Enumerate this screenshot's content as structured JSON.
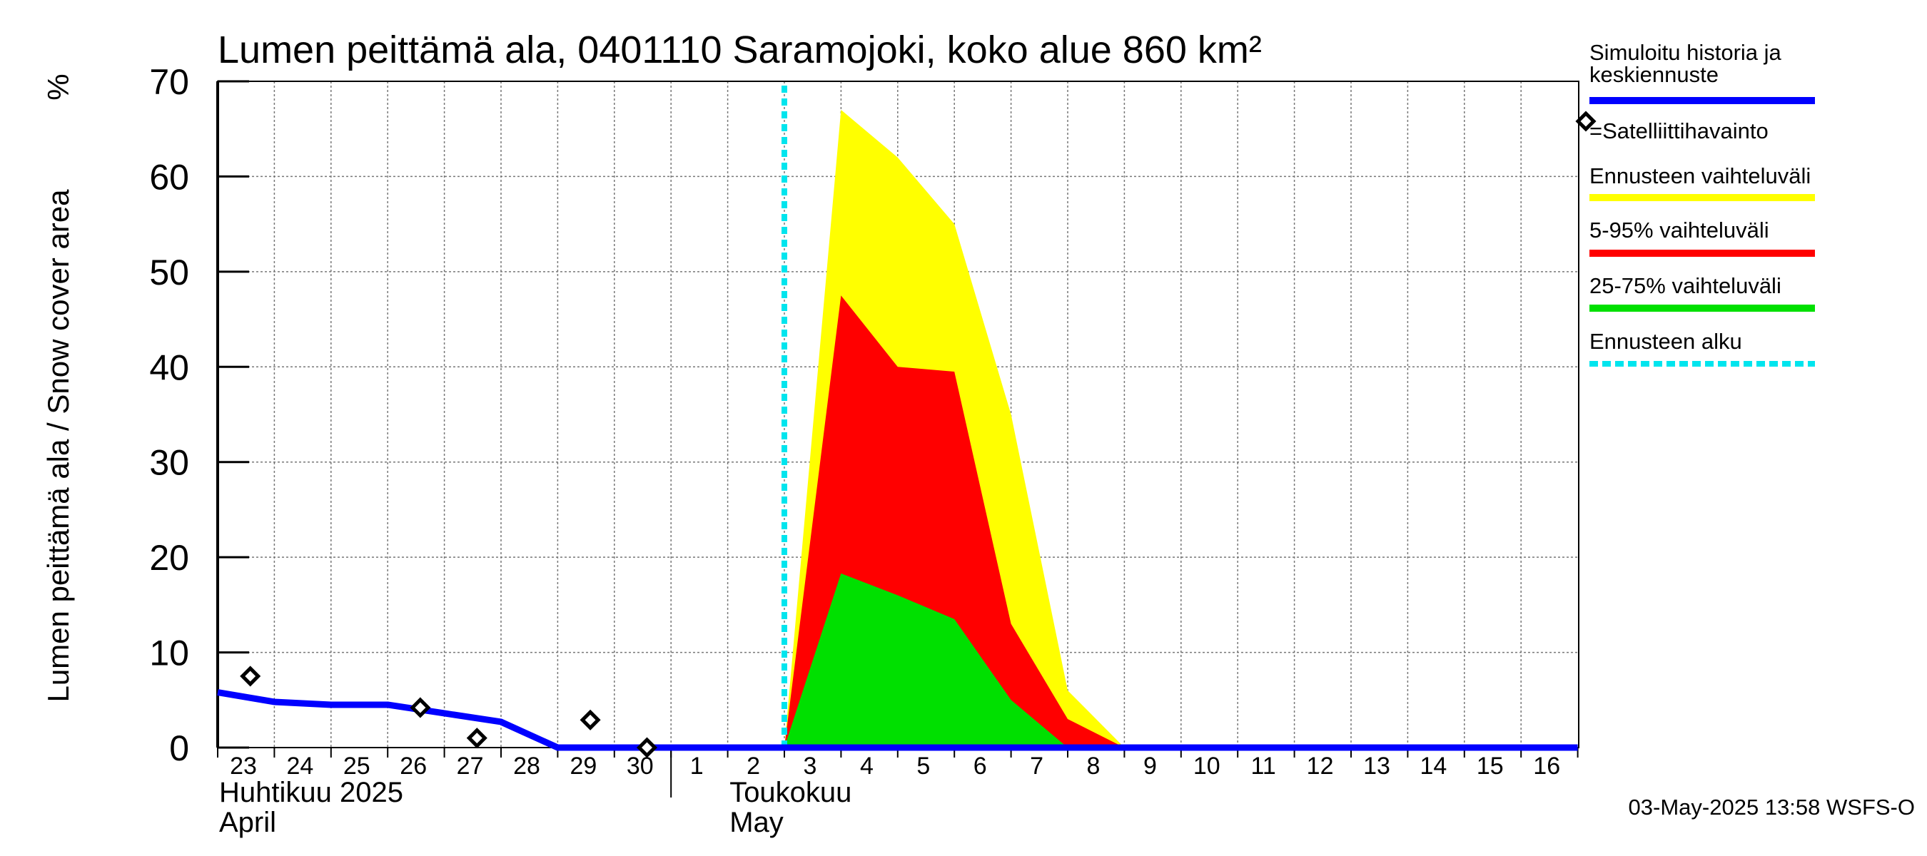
{
  "chart_data": {
    "type": "area",
    "title": "Lumen peittämä ala, 0401110 Saramojoki, koko alue 860 km²",
    "ylabel": "Lumen peittämä ala / Snow cover area",
    "yunit": "%",
    "ylim": [
      0,
      70
    ],
    "yticks": [
      0,
      10,
      20,
      30,
      40,
      50,
      60,
      70
    ],
    "xlim": [
      "2025-04-23",
      "2025-05-17"
    ],
    "x_tick_labels": [
      "23",
      "24",
      "25",
      "26",
      "27",
      "28",
      "29",
      "30",
      "1",
      "2",
      "3",
      "4",
      "5",
      "6",
      "7",
      "8",
      "9",
      "10",
      "11",
      "12",
      "13",
      "14",
      "15",
      "16"
    ],
    "month_labels": [
      {
        "fi": "Huhtikuu  2025",
        "en": "April"
      },
      {
        "fi": "Toukokuu",
        "en": "May"
      }
    ],
    "grid": true,
    "legend_placement": "right",
    "forecast_start": "2025-05-03",
    "series": [
      {
        "name": "Ennusteen vaihteluväli",
        "kind": "band",
        "color": "#ffff00",
        "x": [
          "2025-05-03",
          "2025-05-04",
          "2025-05-05",
          "2025-05-06",
          "2025-05-07",
          "2025-05-08",
          "2025-05-09"
        ],
        "upper": [
          0,
          67,
          62,
          55,
          35,
          6,
          0
        ],
        "lower": [
          0,
          0,
          0,
          0,
          0,
          0,
          0
        ]
      },
      {
        "name": "5-95% vaihteluväli",
        "kind": "band",
        "color": "#ff0000",
        "x": [
          "2025-05-03",
          "2025-05-04",
          "2025-05-05",
          "2025-05-06",
          "2025-05-07",
          "2025-05-08",
          "2025-05-09"
        ],
        "upper": [
          0,
          47.5,
          40,
          39.5,
          13,
          3,
          0
        ],
        "lower": [
          0,
          0,
          0,
          0,
          0,
          0,
          0
        ]
      },
      {
        "name": "25-75% vaihteluväli",
        "kind": "band",
        "color": "#00e000",
        "x": [
          "2025-05-03",
          "2025-05-04",
          "2025-05-05",
          "2025-05-06",
          "2025-05-07",
          "2025-05-08",
          "2025-05-09"
        ],
        "upper": [
          0,
          18.3,
          16,
          13.5,
          5,
          0,
          0
        ],
        "lower": [
          0,
          0,
          0,
          0,
          0,
          0,
          0
        ]
      },
      {
        "name": "Simuloitu historia ja keskiennuste",
        "kind": "line",
        "color": "#0000ff",
        "x": [
          "2025-04-23",
          "2025-04-24",
          "2025-04-25",
          "2025-04-26",
          "2025-04-27",
          "2025-04-28",
          "2025-04-29",
          "2025-04-30",
          "2025-05-01",
          "2025-05-17"
        ],
        "y": [
          5.8,
          4.8,
          4.5,
          4.5,
          3.6,
          2.7,
          0,
          0,
          0,
          0
        ]
      },
      {
        "name": "=Satelliittihavainto",
        "kind": "points",
        "color": "#000000",
        "x": [
          "2025-04-24",
          "2025-04-27",
          "2025-04-28",
          "2025-04-30",
          "2025-05-01"
        ],
        "y": [
          7.5,
          4.2,
          1.0,
          2.9,
          0.0
        ]
      }
    ]
  },
  "legend": [
    {
      "label_lines": [
        "Simuloitu historia ja",
        "keskiennuste"
      ],
      "color": "#0000ff",
      "style": "line"
    },
    {
      "label_lines": [
        "=Satelliittihavainto"
      ],
      "color": "#000000",
      "style": "diamond"
    },
    {
      "label_lines": [
        "Ennusteen vaihteluväli"
      ],
      "color": "#ffff00",
      "style": "line"
    },
    {
      "label_lines": [
        "5-95% vaihteluväli"
      ],
      "color": "#ff0000",
      "style": "line"
    },
    {
      "label_lines": [
        "25-75% vaihteluväli"
      ],
      "color": "#00e000",
      "style": "line"
    },
    {
      "label_lines": [
        "Ennusteen alku"
      ],
      "color": "#00e5ee",
      "style": "dashed"
    }
  ],
  "timestamp": "03-May-2025 13:58 WSFS-O"
}
